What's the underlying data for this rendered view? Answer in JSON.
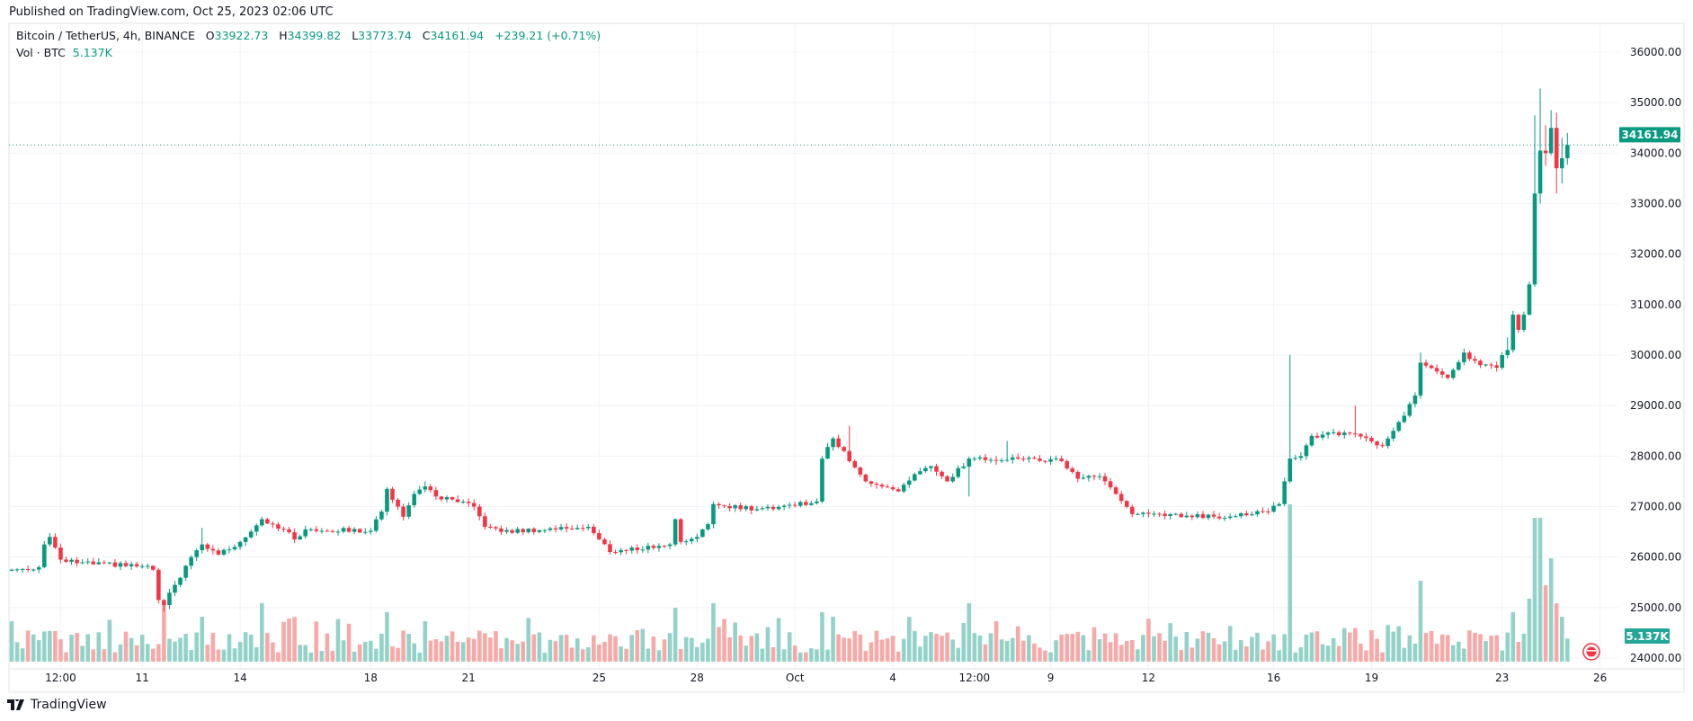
{
  "header": {
    "published": "Published on TradingView.com, Oct 25, 2023 02:06 UTC"
  },
  "legend": {
    "symbol": "Bitcoin / TetherUS, 4h, BINANCE",
    "o_label": "O",
    "o": "33922.73",
    "h_label": "H",
    "h": "34399.82",
    "l_label": "L",
    "l": "33773.74",
    "c_label": "C",
    "c": "34161.94",
    "change": "+239.21 (+0.71%)",
    "vol_label": "Vol · BTC",
    "vol": "5.137K"
  },
  "footer": {
    "logo_text": "TradingView"
  },
  "colors": {
    "up": "#089981",
    "down": "#f23645",
    "vol_up": "#92d2c8",
    "vol_down": "#f7a9a7"
  },
  "chart_data": {
    "type": "candlestick",
    "title": "Bitcoin / TetherUS, 4h, BINANCE",
    "interval": "4h",
    "candle_count": 287,
    "y_ticks": [
      "36000.00",
      "35000.00",
      "34000.00",
      "33000.00",
      "32000.00",
      "31000.00",
      "30000.00",
      "29000.00",
      "28000.00",
      "27000.00",
      "26000.00",
      "25000.00",
      "24000.00"
    ],
    "ylim": [
      24000,
      36000
    ],
    "x_ticks": [
      {
        "label": "12:00",
        "index": 9
      },
      {
        "label": "11",
        "index": 24
      },
      {
        "label": "14",
        "index": 42
      },
      {
        "label": "18",
        "index": 66
      },
      {
        "label": "21",
        "index": 84
      },
      {
        "label": "25",
        "index": 108
      },
      {
        "label": "28",
        "index": 126
      },
      {
        "label": "Oct",
        "index": 144
      },
      {
        "label": "4",
        "index": 162
      },
      {
        "label": "12:00",
        "index": 177
      },
      {
        "label": "9",
        "index": 191
      },
      {
        "label": "12",
        "index": 209
      },
      {
        "label": "16",
        "index": 232
      },
      {
        "label": "19",
        "index": 250
      },
      {
        "label": "23",
        "index": 274
      },
      {
        "label": "26",
        "index": 292
      }
    ],
    "close_anchors": [
      [
        0,
        25750
      ],
      [
        5,
        25800
      ],
      [
        6,
        26250
      ],
      [
        7,
        26400
      ],
      [
        9,
        25950
      ],
      [
        12,
        25880
      ],
      [
        24,
        25820
      ],
      [
        26,
        25750
      ],
      [
        27,
        25150
      ],
      [
        28,
        25050
      ],
      [
        30,
        25450
      ],
      [
        33,
        26000
      ],
      [
        35,
        26250
      ],
      [
        38,
        26050
      ],
      [
        42,
        26300
      ],
      [
        46,
        26750
      ],
      [
        50,
        26550
      ],
      [
        52,
        26350
      ],
      [
        54,
        26550
      ],
      [
        66,
        26520
      ],
      [
        68,
        26900
      ],
      [
        69,
        27350
      ],
      [
        71,
        27000
      ],
      [
        72,
        26800
      ],
      [
        74,
        27250
      ],
      [
        76,
        27400
      ],
      [
        78,
        27200
      ],
      [
        85,
        27000
      ],
      [
        87,
        26600
      ],
      [
        90,
        26500
      ],
      [
        106,
        26600
      ],
      [
        108,
        26350
      ],
      [
        110,
        26100
      ],
      [
        121,
        26250
      ],
      [
        122,
        26750
      ],
      [
        123,
        26300
      ],
      [
        126,
        26400
      ],
      [
        128,
        26650
      ],
      [
        129,
        27050
      ],
      [
        137,
        26950
      ],
      [
        148,
        27100
      ],
      [
        149,
        27950
      ],
      [
        151,
        28350
      ],
      [
        153,
        28100
      ],
      [
        154,
        27900
      ],
      [
        157,
        27500
      ],
      [
        163,
        27300
      ],
      [
        167,
        27700
      ],
      [
        169,
        27800
      ],
      [
        172,
        27500
      ],
      [
        176,
        27950
      ],
      [
        185,
        27950
      ],
      [
        193,
        27900
      ],
      [
        196,
        27550
      ],
      [
        200,
        27600
      ],
      [
        203,
        27250
      ],
      [
        206,
        26850
      ],
      [
        221,
        26800
      ],
      [
        231,
        26900
      ],
      [
        233,
        27050
      ],
      [
        234,
        27500
      ],
      [
        235,
        27950
      ],
      [
        237,
        28000
      ],
      [
        239,
        28400
      ],
      [
        246,
        28450
      ],
      [
        252,
        28200
      ],
      [
        254,
        28500
      ],
      [
        256,
        28800
      ],
      [
        258,
        29200
      ],
      [
        259,
        29850
      ],
      [
        264,
        29550
      ],
      [
        267,
        30050
      ],
      [
        270,
        29800
      ],
      [
        273,
        29750
      ],
      [
        274,
        30000
      ],
      [
        275,
        30100
      ],
      [
        276,
        30800
      ],
      [
        277,
        30500
      ],
      [
        278,
        30800
      ],
      [
        279,
        31400
      ],
      [
        280,
        33200
      ],
      [
        281,
        34050
      ],
      [
        282,
        34000
      ],
      [
        283,
        34500
      ],
      [
        284,
        33700
      ],
      [
        285,
        33900
      ],
      [
        286,
        34161.94
      ]
    ],
    "wick_extremes": [
      [
        7,
        26480,
        null
      ],
      [
        28,
        null,
        24920
      ],
      [
        35,
        26580,
        null
      ],
      [
        76,
        27500,
        null
      ],
      [
        129,
        27100,
        null
      ],
      [
        154,
        28600,
        null
      ],
      [
        176,
        null,
        27200
      ],
      [
        183,
        28300,
        null
      ],
      [
        235,
        30000,
        null
      ],
      [
        247,
        29000,
        null
      ],
      [
        259,
        30050,
        null
      ],
      [
        275,
        30350,
        null
      ],
      [
        280,
        34750,
        null
      ],
      [
        281,
        35280,
        33000
      ],
      [
        282,
        34550,
        33750
      ],
      [
        283,
        34850,
        null
      ],
      [
        284,
        34800,
        33200
      ],
      [
        285,
        34300,
        33400
      ],
      [
        286,
        34399.82,
        33773.74
      ]
    ],
    "last_price": "34161.94",
    "last_volume": "5.137K",
    "volume_unit": "K BTC",
    "volume_spikes": [
      [
        28,
        13
      ],
      [
        35,
        10
      ],
      [
        46,
        13
      ],
      [
        69,
        11
      ],
      [
        76,
        9
      ],
      [
        122,
        12
      ],
      [
        129,
        13
      ],
      [
        149,
        11
      ],
      [
        151,
        10
      ],
      [
        176,
        13
      ],
      [
        235,
        35
      ],
      [
        259,
        18
      ],
      [
        276,
        11
      ],
      [
        279,
        14
      ],
      [
        280,
        32
      ],
      [
        281,
        32
      ],
      [
        282,
        17
      ],
      [
        283,
        23
      ],
      [
        284,
        13
      ],
      [
        285,
        10
      ],
      [
        286,
        5.137
      ]
    ]
  }
}
